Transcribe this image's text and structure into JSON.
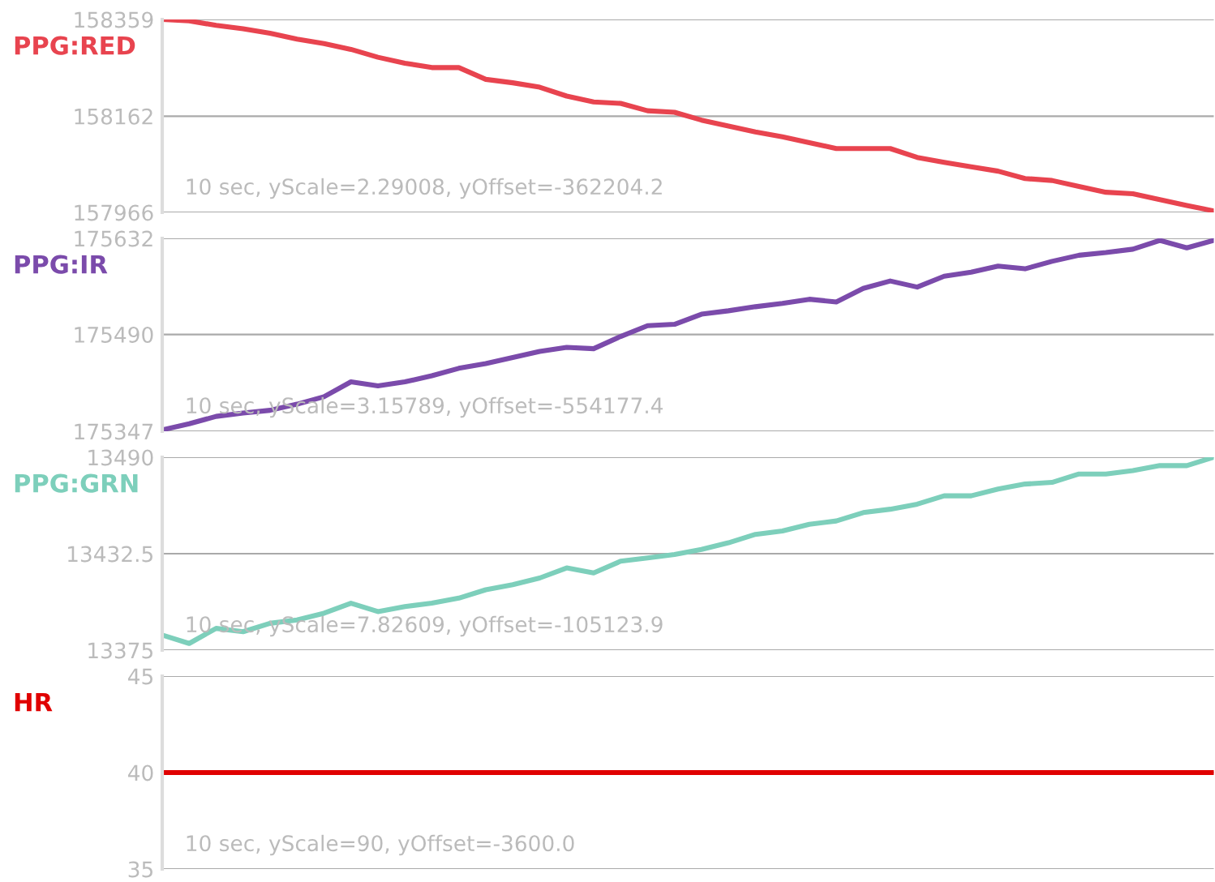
{
  "chart_data": [
    {
      "type": "line",
      "categories": [
        null,
        null,
        null,
        null,
        null,
        null,
        null,
        null,
        null,
        null,
        null,
        null,
        null,
        null,
        null,
        null,
        null,
        null,
        null,
        null,
        null,
        null,
        null,
        null,
        null,
        null,
        null,
        null,
        null,
        null,
        null,
        null,
        null,
        null,
        null,
        null,
        null,
        null,
        null,
        null
      ],
      "series": [
        {
          "name": "PPG:RED",
          "color": "#e8444f",
          "values": [
            158359,
            158356,
            158347,
            158340,
            158331,
            158319,
            158310,
            158298,
            158282,
            158270,
            158261,
            158261,
            158237,
            158230,
            158221,
            158203,
            158191,
            158188,
            158173,
            158170,
            158154,
            158142,
            158130,
            158120,
            158108,
            158096,
            158096,
            158096,
            158078,
            158068,
            158059,
            158050,
            158035,
            158031,
            158019,
            158007,
            158004,
            157992,
            157980,
            157969
          ]
        }
      ],
      "ylim": [
        157966,
        158359
      ],
      "yticks": [
        157966,
        158162,
        158359
      ],
      "grid": "y",
      "tick_labels": "y",
      "marker": "none",
      "annotations": [
        "10 sec, yScale=2.29008, yOffset=-362204.2"
      ]
    },
    {
      "type": "line",
      "categories": [
        null,
        null,
        null,
        null,
        null,
        null,
        null,
        null,
        null,
        null,
        null,
        null,
        null,
        null,
        null,
        null,
        null,
        null,
        null,
        null,
        null,
        null,
        null,
        null,
        null,
        null,
        null,
        null,
        null,
        null,
        null,
        null,
        null,
        null,
        null,
        null,
        null,
        null,
        null,
        null
      ],
      "series": [
        {
          "name": "PPG:IR",
          "color": "#7b4bab",
          "values": [
            175349,
            175358,
            175369,
            175374,
            175378,
            175387,
            175398,
            175420,
            175414,
            175420,
            175429,
            175440,
            175447,
            175456,
            175465,
            175471,
            175469,
            175487,
            175503,
            175505,
            175520,
            175525,
            175531,
            175536,
            175542,
            175538,
            175558,
            175569,
            175560,
            175576,
            175582,
            175591,
            175587,
            175598,
            175607,
            175611,
            175616,
            175629,
            175618,
            175629
          ]
        }
      ],
      "ylim": [
        175347,
        175632
      ],
      "yticks": [
        175347,
        175490,
        175632
      ],
      "grid": "y",
      "tick_labels": "y",
      "marker": "none",
      "annotations": [
        "10 sec, yScale=3.15789, yOffset=-554177.4"
      ]
    },
    {
      "type": "line",
      "categories": [
        null,
        null,
        null,
        null,
        null,
        null,
        null,
        null,
        null,
        null,
        null,
        null,
        null,
        null,
        null,
        null,
        null,
        null,
        null,
        null,
        null,
        null,
        null,
        null,
        null,
        null,
        null,
        null,
        null,
        null,
        null,
        null,
        null,
        null,
        null,
        null,
        null,
        null,
        null,
        null
      ],
      "series": [
        {
          "name": "PPG:GRN",
          "color": "#7dcfbb",
          "values": [
            13384,
            13379,
            13388,
            13386,
            13391,
            13393,
            13397,
            13403,
            13398,
            13401,
            13403,
            13406,
            13411,
            13414,
            13418,
            13424,
            13421,
            13428,
            13430,
            13432,
            13435,
            13439,
            13444,
            13446,
            13450,
            13452,
            13457,
            13459,
            13462,
            13467,
            13467,
            13471,
            13474,
            13475,
            13480,
            13480,
            13482,
            13485,
            13485,
            13490
          ]
        }
      ],
      "ylim": [
        13375,
        13490
      ],
      "yticks": [
        13375,
        13432.5,
        13490
      ],
      "grid": "y",
      "tick_labels": "y",
      "marker": "none",
      "annotations": [
        "10 sec, yScale=7.82609, yOffset=-105123.9"
      ]
    },
    {
      "type": "line",
      "categories": [
        null,
        null,
        null,
        null,
        null,
        null,
        null,
        null,
        null,
        null,
        null,
        null,
        null,
        null,
        null,
        null,
        null,
        null,
        null,
        null,
        null,
        null,
        null,
        null,
        null,
        null,
        null,
        null,
        null,
        null,
        null,
        null,
        null,
        null,
        null,
        null,
        null,
        null,
        null,
        null
      ],
      "series": [
        {
          "name": "HR",
          "color": "#e00000",
          "values": [
            40,
            40,
            40,
            40,
            40,
            40,
            40,
            40,
            40,
            40,
            40,
            40,
            40,
            40,
            40,
            40,
            40,
            40,
            40,
            40,
            40,
            40,
            40,
            40,
            40,
            40,
            40,
            40,
            40,
            40,
            40,
            40,
            40,
            40,
            40,
            40,
            40,
            40,
            40,
            40
          ]
        }
      ],
      "ylim": [
        35,
        45
      ],
      "yticks": [
        35,
        40,
        45
      ],
      "grid": "y",
      "tick_labels": "y",
      "marker": "none",
      "annotations": [
        "10 sec, yScale=90, yOffset=-3600.0"
      ]
    }
  ]
}
